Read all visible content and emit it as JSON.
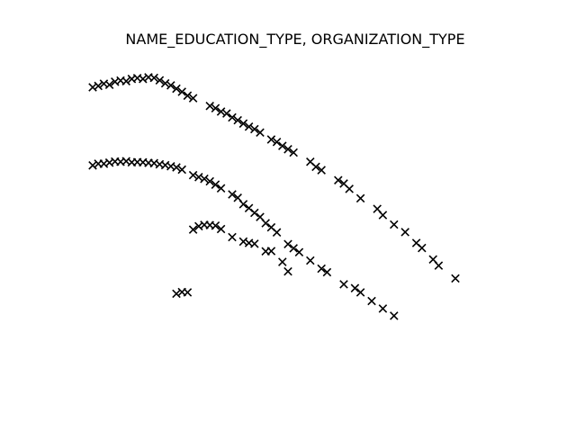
{
  "chart_data": {
    "type": "scatter",
    "title": "NAME_EDUCATION_TYPE, ORGANIZATION_TYPE",
    "xlabel": "",
    "ylabel": "",
    "axes_visible": false,
    "grid": false,
    "marker": "x",
    "marker_color": "#000000",
    "xlim": [
      0,
      100
    ],
    "ylim": [
      0,
      100
    ],
    "series": [
      {
        "points": [
          [
            1,
            100
          ],
          [
            2,
            100.5
          ],
          [
            3,
            101.3
          ],
          [
            4,
            100.9
          ],
          [
            5,
            102
          ],
          [
            6,
            102.4
          ],
          [
            7,
            102.2
          ],
          [
            8,
            103
          ],
          [
            9,
            103.3
          ],
          [
            10,
            103
          ],
          [
            11,
            103.6
          ],
          [
            12,
            103.4
          ],
          [
            13,
            102.5
          ],
          [
            14,
            101.4
          ],
          [
            15,
            100.7
          ],
          [
            16,
            99.5
          ],
          [
            17,
            98.4
          ],
          [
            18,
            97
          ],
          [
            19,
            96.1
          ],
          [
            22,
            93.3
          ],
          [
            23,
            92.5
          ],
          [
            24,
            91.3
          ],
          [
            25,
            90.6
          ],
          [
            26,
            89.2
          ],
          [
            27,
            88.2
          ],
          [
            28,
            87
          ],
          [
            29,
            85.9
          ],
          [
            30,
            85
          ],
          [
            31,
            83.8
          ],
          [
            33,
            81.3
          ],
          [
            34,
            80.4
          ],
          [
            35,
            79
          ],
          [
            36,
            77.8
          ],
          [
            37,
            76.6
          ],
          [
            40,
            73.3
          ],
          [
            41,
            71.5
          ],
          [
            42,
            70.3
          ],
          [
            45,
            66.7
          ],
          [
            46,
            65.5
          ],
          [
            47,
            63.6
          ],
          [
            49,
            60.2
          ],
          [
            52,
            56.4
          ],
          [
            53,
            54.2
          ],
          [
            55,
            50.8
          ],
          [
            57,
            48.1
          ],
          [
            59,
            44.2
          ],
          [
            60,
            42.4
          ],
          [
            62,
            38.3
          ],
          [
            63,
            36.1
          ],
          [
            66,
            31.5
          ]
        ]
      },
      {
        "points": [
          [
            1,
            72
          ],
          [
            2,
            72.6
          ],
          [
            3,
            72.6
          ],
          [
            4,
            73
          ],
          [
            5,
            73.4
          ],
          [
            6,
            73.3
          ],
          [
            7,
            73.5
          ],
          [
            8,
            73.1
          ],
          [
            9,
            73.2
          ],
          [
            10,
            73.1
          ],
          [
            11,
            72.9
          ],
          [
            12,
            72.8
          ],
          [
            13,
            72.4
          ],
          [
            14,
            72.1
          ],
          [
            15,
            71.7
          ],
          [
            16,
            71.3
          ],
          [
            17,
            70.5
          ],
          [
            19,
            68.5
          ],
          [
            20,
            67.8
          ],
          [
            21,
            67.2
          ],
          [
            22,
            66.3
          ],
          [
            23,
            65.1
          ],
          [
            24,
            63.8
          ],
          [
            26,
            61.6
          ],
          [
            27,
            60.4
          ],
          [
            28,
            58.1
          ],
          [
            29,
            56.7
          ],
          [
            30,
            55
          ],
          [
            31,
            53.5
          ],
          [
            32,
            51.3
          ],
          [
            33,
            49.8
          ],
          [
            34,
            48
          ],
          [
            36,
            43.8
          ],
          [
            37,
            42.3
          ],
          [
            38,
            40.9
          ],
          [
            40,
            37.9
          ],
          [
            42,
            35
          ],
          [
            43,
            33.7
          ],
          [
            46,
            29.4
          ],
          [
            48,
            28
          ],
          [
            49,
            26.5
          ],
          [
            51,
            23.4
          ],
          [
            53,
            20.7
          ],
          [
            55,
            18.1
          ]
        ]
      },
      {
        "points": [
          [
            19,
            49
          ],
          [
            20,
            50.2
          ],
          [
            21,
            50.7
          ],
          [
            22,
            50.6
          ],
          [
            23,
            50.4
          ],
          [
            24,
            49.2
          ],
          [
            26,
            46.3
          ],
          [
            28,
            44.7
          ],
          [
            29,
            44.2
          ],
          [
            30,
            43.9
          ],
          [
            32,
            41.2
          ],
          [
            33,
            41.3
          ],
          [
            35,
            37.4
          ],
          [
            36,
            34
          ]
        ]
      },
      {
        "points": [
          [
            16,
            26
          ],
          [
            17,
            26.6
          ],
          [
            18,
            26.5
          ]
        ]
      }
    ]
  }
}
